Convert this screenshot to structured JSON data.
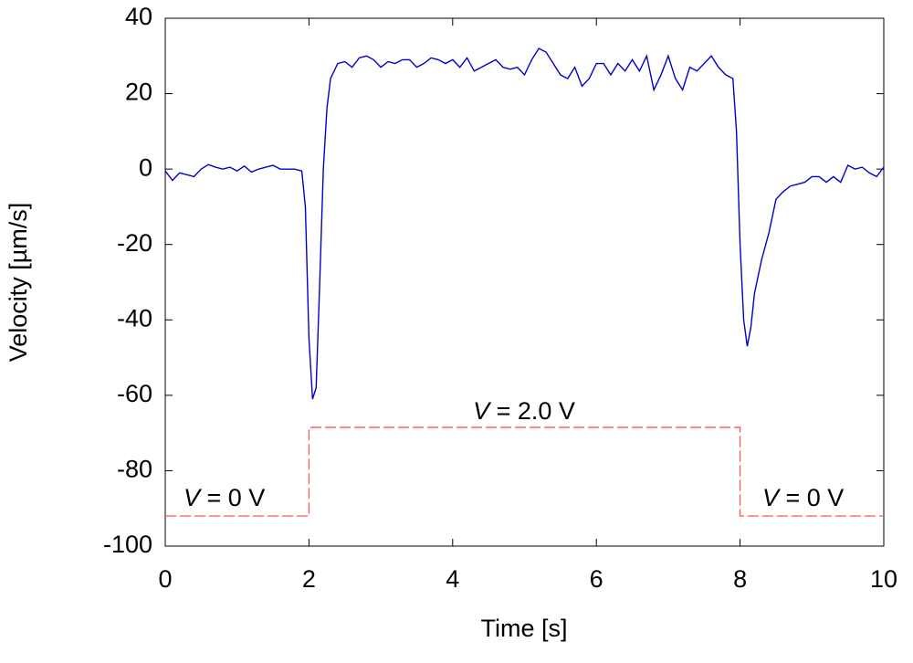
{
  "chart_data": {
    "type": "line",
    "xlabel": "Time [s]",
    "ylabel": "Velocity [µm/s]",
    "xlim": [
      0,
      10
    ],
    "xticks": [
      0,
      2,
      4,
      6,
      8,
      10
    ],
    "ylim": [
      -100,
      40
    ],
    "yticks": [
      -100,
      -80,
      -60,
      -40,
      -20,
      0,
      20,
      40
    ],
    "grid": false,
    "series": [
      {
        "color": "#0000cc",
        "style": "solid",
        "x": [
          0.0,
          0.1,
          0.2,
          0.3,
          0.4,
          0.5,
          0.6,
          0.7,
          0.8,
          0.9,
          1.0,
          1.1,
          1.2,
          1.3,
          1.4,
          1.5,
          1.6,
          1.7,
          1.8,
          1.9,
          1.95,
          2.0,
          2.05,
          2.1,
          2.15,
          2.2,
          2.25,
          2.3,
          2.4,
          2.5,
          2.6,
          2.7,
          2.8,
          2.9,
          3.0,
          3.1,
          3.2,
          3.3,
          3.4,
          3.5,
          3.6,
          3.7,
          3.8,
          3.9,
          4.0,
          4.1,
          4.2,
          4.3,
          4.4,
          4.5,
          4.6,
          4.7,
          4.8,
          4.9,
          5.0,
          5.1,
          5.2,
          5.3,
          5.4,
          5.5,
          5.6,
          5.7,
          5.8,
          5.9,
          6.0,
          6.1,
          6.2,
          6.3,
          6.4,
          6.5,
          6.6,
          6.7,
          6.8,
          6.9,
          7.0,
          7.1,
          7.2,
          7.3,
          7.4,
          7.5,
          7.6,
          7.7,
          7.8,
          7.9,
          7.95,
          8.0,
          8.05,
          8.1,
          8.15,
          8.2,
          8.3,
          8.4,
          8.5,
          8.6,
          8.7,
          8.8,
          8.9,
          9.0,
          9.1,
          9.2,
          9.3,
          9.4,
          9.5,
          9.6,
          9.7,
          9.8,
          9.9,
          10.0
        ],
        "values": [
          -0.5,
          -3,
          -1,
          -1.5,
          -2,
          0,
          1.2,
          0.5,
          0,
          0.5,
          -0.5,
          0.8,
          -0.8,
          0,
          0.5,
          1,
          0,
          0,
          0,
          -0.5,
          -10,
          -45,
          -61,
          -58,
          -30,
          0,
          16,
          24,
          28,
          28.5,
          27,
          29.5,
          30,
          29,
          27,
          28.5,
          28,
          29,
          29,
          27,
          28,
          29.5,
          29,
          28,
          29,
          27,
          29.5,
          26,
          27,
          28,
          29,
          27,
          26.5,
          27,
          25,
          29,
          32,
          31,
          28,
          25,
          24,
          27,
          22,
          24,
          28,
          28,
          25,
          28,
          26,
          29,
          26,
          30,
          21,
          25,
          30,
          24,
          21,
          27,
          26,
          28,
          30,
          27,
          25,
          24,
          10,
          -20,
          -40,
          -47,
          -42,
          -33,
          -24,
          -17,
          -8,
          -6,
          -4.5,
          -4,
          -3.5,
          -2,
          -2,
          -3.5,
          -2,
          -3.5,
          1,
          0,
          0.5,
          -1,
          -2,
          0.5
        ]
      },
      {
        "color": "#ff5555",
        "style": "dashed",
        "x": [
          0,
          2,
          2,
          8,
          8,
          10
        ],
        "values": [
          -92,
          -92,
          -68.5,
          -68.5,
          -92,
          -92
        ]
      }
    ],
    "annotations": [
      "V = 0 V",
      "V = 2.0 V",
      "V = 0 V"
    ]
  }
}
